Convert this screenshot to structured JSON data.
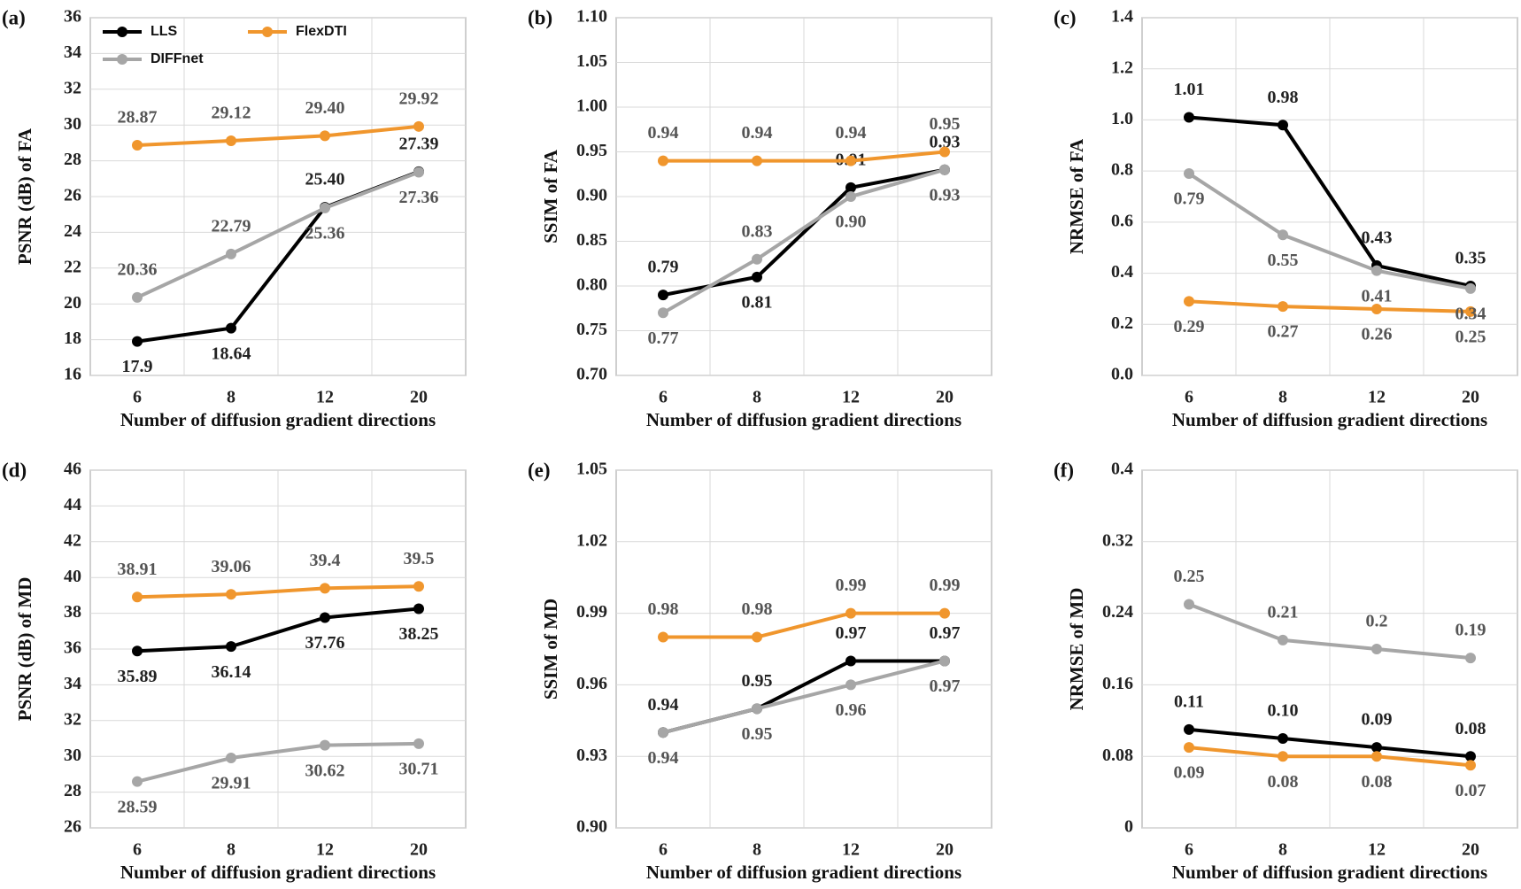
{
  "chart_data": [
    {
      "type": "line",
      "panel": "(a)",
      "x_label": "Number of diffusion gradient directions",
      "y_label": "PSNR (dB) of  FA",
      "categories": [
        "6",
        "8",
        "12",
        "20"
      ],
      "ylim": [
        16,
        36
      ],
      "yticks": [
        16,
        18,
        20,
        22,
        24,
        26,
        28,
        30,
        32,
        34,
        36
      ],
      "grid": true,
      "legend": "upper left",
      "series": [
        {
          "name": "LLS",
          "color": "#000000",
          "values": [
            17.9,
            18.64,
            25.4,
            27.39
          ],
          "value_labels": [
            "17.9",
            "18.64",
            "25.40",
            "27.39"
          ]
        },
        {
          "name": "FlexDTI",
          "color": "#f0962d",
          "values": [
            28.87,
            29.12,
            29.4,
            29.92
          ],
          "value_labels": [
            "28.87",
            "29.12",
            "29.40",
            "29.92"
          ]
        },
        {
          "name": "DIFFnet",
          "color": "#a6a6a6",
          "values": [
            20.36,
            22.79,
            25.36,
            27.36
          ]
        }
      ]
    },
    {
      "type": "line",
      "panel": "(b)",
      "x_label": "Number of diffusion gradient directions",
      "y_label": "SSIM of  FA",
      "categories": [
        "6",
        "8",
        "12",
        "20"
      ],
      "ylim": [
        0.7,
        1.1
      ],
      "yticks": [
        {
          "value": 0.7,
          "label": "0.70"
        },
        0.75,
        {
          "value": 0.8,
          "label": "0.80"
        },
        0.85,
        {
          "value": 0.9,
          "label": "0.90"
        },
        0.95,
        {
          "value": 1.0,
          "label": "1.00"
        },
        1.05,
        {
          "value": 1.1,
          "label": "1.10"
        }
      ],
      "grid": true,
      "series": [
        {
          "name": "LLS",
          "color": "#000000",
          "values": [
            0.79,
            0.81,
            0.91,
            0.93
          ]
        },
        {
          "name": "FlexDTI",
          "color": "#f0962d",
          "values": [
            0.94,
            0.94,
            0.94,
            0.95
          ]
        },
        {
          "name": "DIFFnet",
          "color": "#a6a6a6",
          "values": [
            0.77,
            0.83,
            0.9,
            0.93
          ],
          "value_labels": [
            "0.77",
            "0.83",
            "0.90",
            "0.93"
          ]
        }
      ]
    },
    {
      "type": "line",
      "panel": "(c)",
      "x_label": "Number of diffusion gradient directions",
      "y_label": "NRMSE of  FA",
      "categories": [
        "6",
        "8",
        "12",
        "20"
      ],
      "ylim": [
        0,
        1.4
      ],
      "yticks": [
        {
          "value": 0,
          "label": "0.0"
        },
        0.2,
        0.4,
        0.6,
        0.8,
        {
          "value": 1.0,
          "label": "1.0"
        },
        1.2,
        1.4
      ],
      "grid": true,
      "series": [
        {
          "name": "LLS",
          "color": "#000000",
          "values": [
            1.01,
            0.98,
            0.43,
            0.35
          ]
        },
        {
          "name": "FlexDTI",
          "color": "#f0962d",
          "values": [
            0.29,
            0.27,
            0.26,
            0.25
          ]
        },
        {
          "name": "DIFFnet",
          "color": "#a6a6a6",
          "values": [
            0.79,
            0.55,
            0.41,
            0.34
          ]
        }
      ]
    },
    {
      "type": "line",
      "panel": "(d)",
      "x_label": "Number of diffusion gradient directions",
      "y_label": "PSNR (dB) of  MD",
      "categories": [
        "6",
        "8",
        "12",
        "20"
      ],
      "ylim": [
        26,
        46
      ],
      "yticks": [
        26,
        28,
        30,
        32,
        34,
        36,
        38,
        40,
        42,
        44,
        46
      ],
      "grid": true,
      "series": [
        {
          "name": "LLS",
          "color": "#000000",
          "values": [
            35.89,
            36.14,
            37.76,
            38.25
          ]
        },
        {
          "name": "FlexDTI",
          "color": "#f0962d",
          "values": [
            38.91,
            39.06,
            39.4,
            39.5
          ]
        },
        {
          "name": "DIFFnet",
          "color": "#a6a6a6",
          "values": [
            28.59,
            29.91,
            30.62,
            30.71
          ]
        }
      ]
    },
    {
      "type": "line",
      "panel": "(e)",
      "x_label": "Number of diffusion gradient directions",
      "y_label": "SSIM of  MD",
      "categories": [
        "6",
        "8",
        "12",
        "20"
      ],
      "ylim": [
        0.9,
        1.05
      ],
      "yticks": [
        {
          "value": 0.9,
          "label": "0.90"
        },
        0.93,
        0.96,
        0.99,
        1.02,
        1.05
      ],
      "grid": true,
      "series": [
        {
          "name": "LLS",
          "color": "#000000",
          "values": [
            0.94,
            0.95,
            0.97,
            0.97
          ]
        },
        {
          "name": "FlexDTI",
          "color": "#f0962d",
          "values": [
            0.98,
            0.98,
            0.99,
            0.99
          ]
        },
        {
          "name": "DIFFnet",
          "color": "#a6a6a6",
          "values": [
            0.94,
            0.95,
            0.96,
            0.97
          ]
        }
      ]
    },
    {
      "type": "line",
      "panel": "(f)",
      "x_label": "Number of diffusion gradient directions",
      "y_label": "NRMSE of  MD",
      "categories": [
        "6",
        "8",
        "12",
        "20"
      ],
      "ylim": [
        0,
        0.4
      ],
      "yticks": [
        0,
        0.08,
        0.16,
        0.24,
        0.32,
        0.4
      ],
      "grid": true,
      "series": [
        {
          "name": "LLS",
          "color": "#000000",
          "values": [
            0.11,
            0.1,
            0.09,
            0.08
          ],
          "value_labels": [
            "0.11",
            "0.10",
            "0.09",
            "0.08"
          ]
        },
        {
          "name": "FlexDTI",
          "color": "#f0962d",
          "values": [
            0.09,
            0.08,
            0.08,
            0.07
          ]
        },
        {
          "name": "DIFFnet",
          "color": "#a6a6a6",
          "values": [
            0.25,
            0.21,
            0.2,
            0.19
          ]
        }
      ]
    }
  ]
}
